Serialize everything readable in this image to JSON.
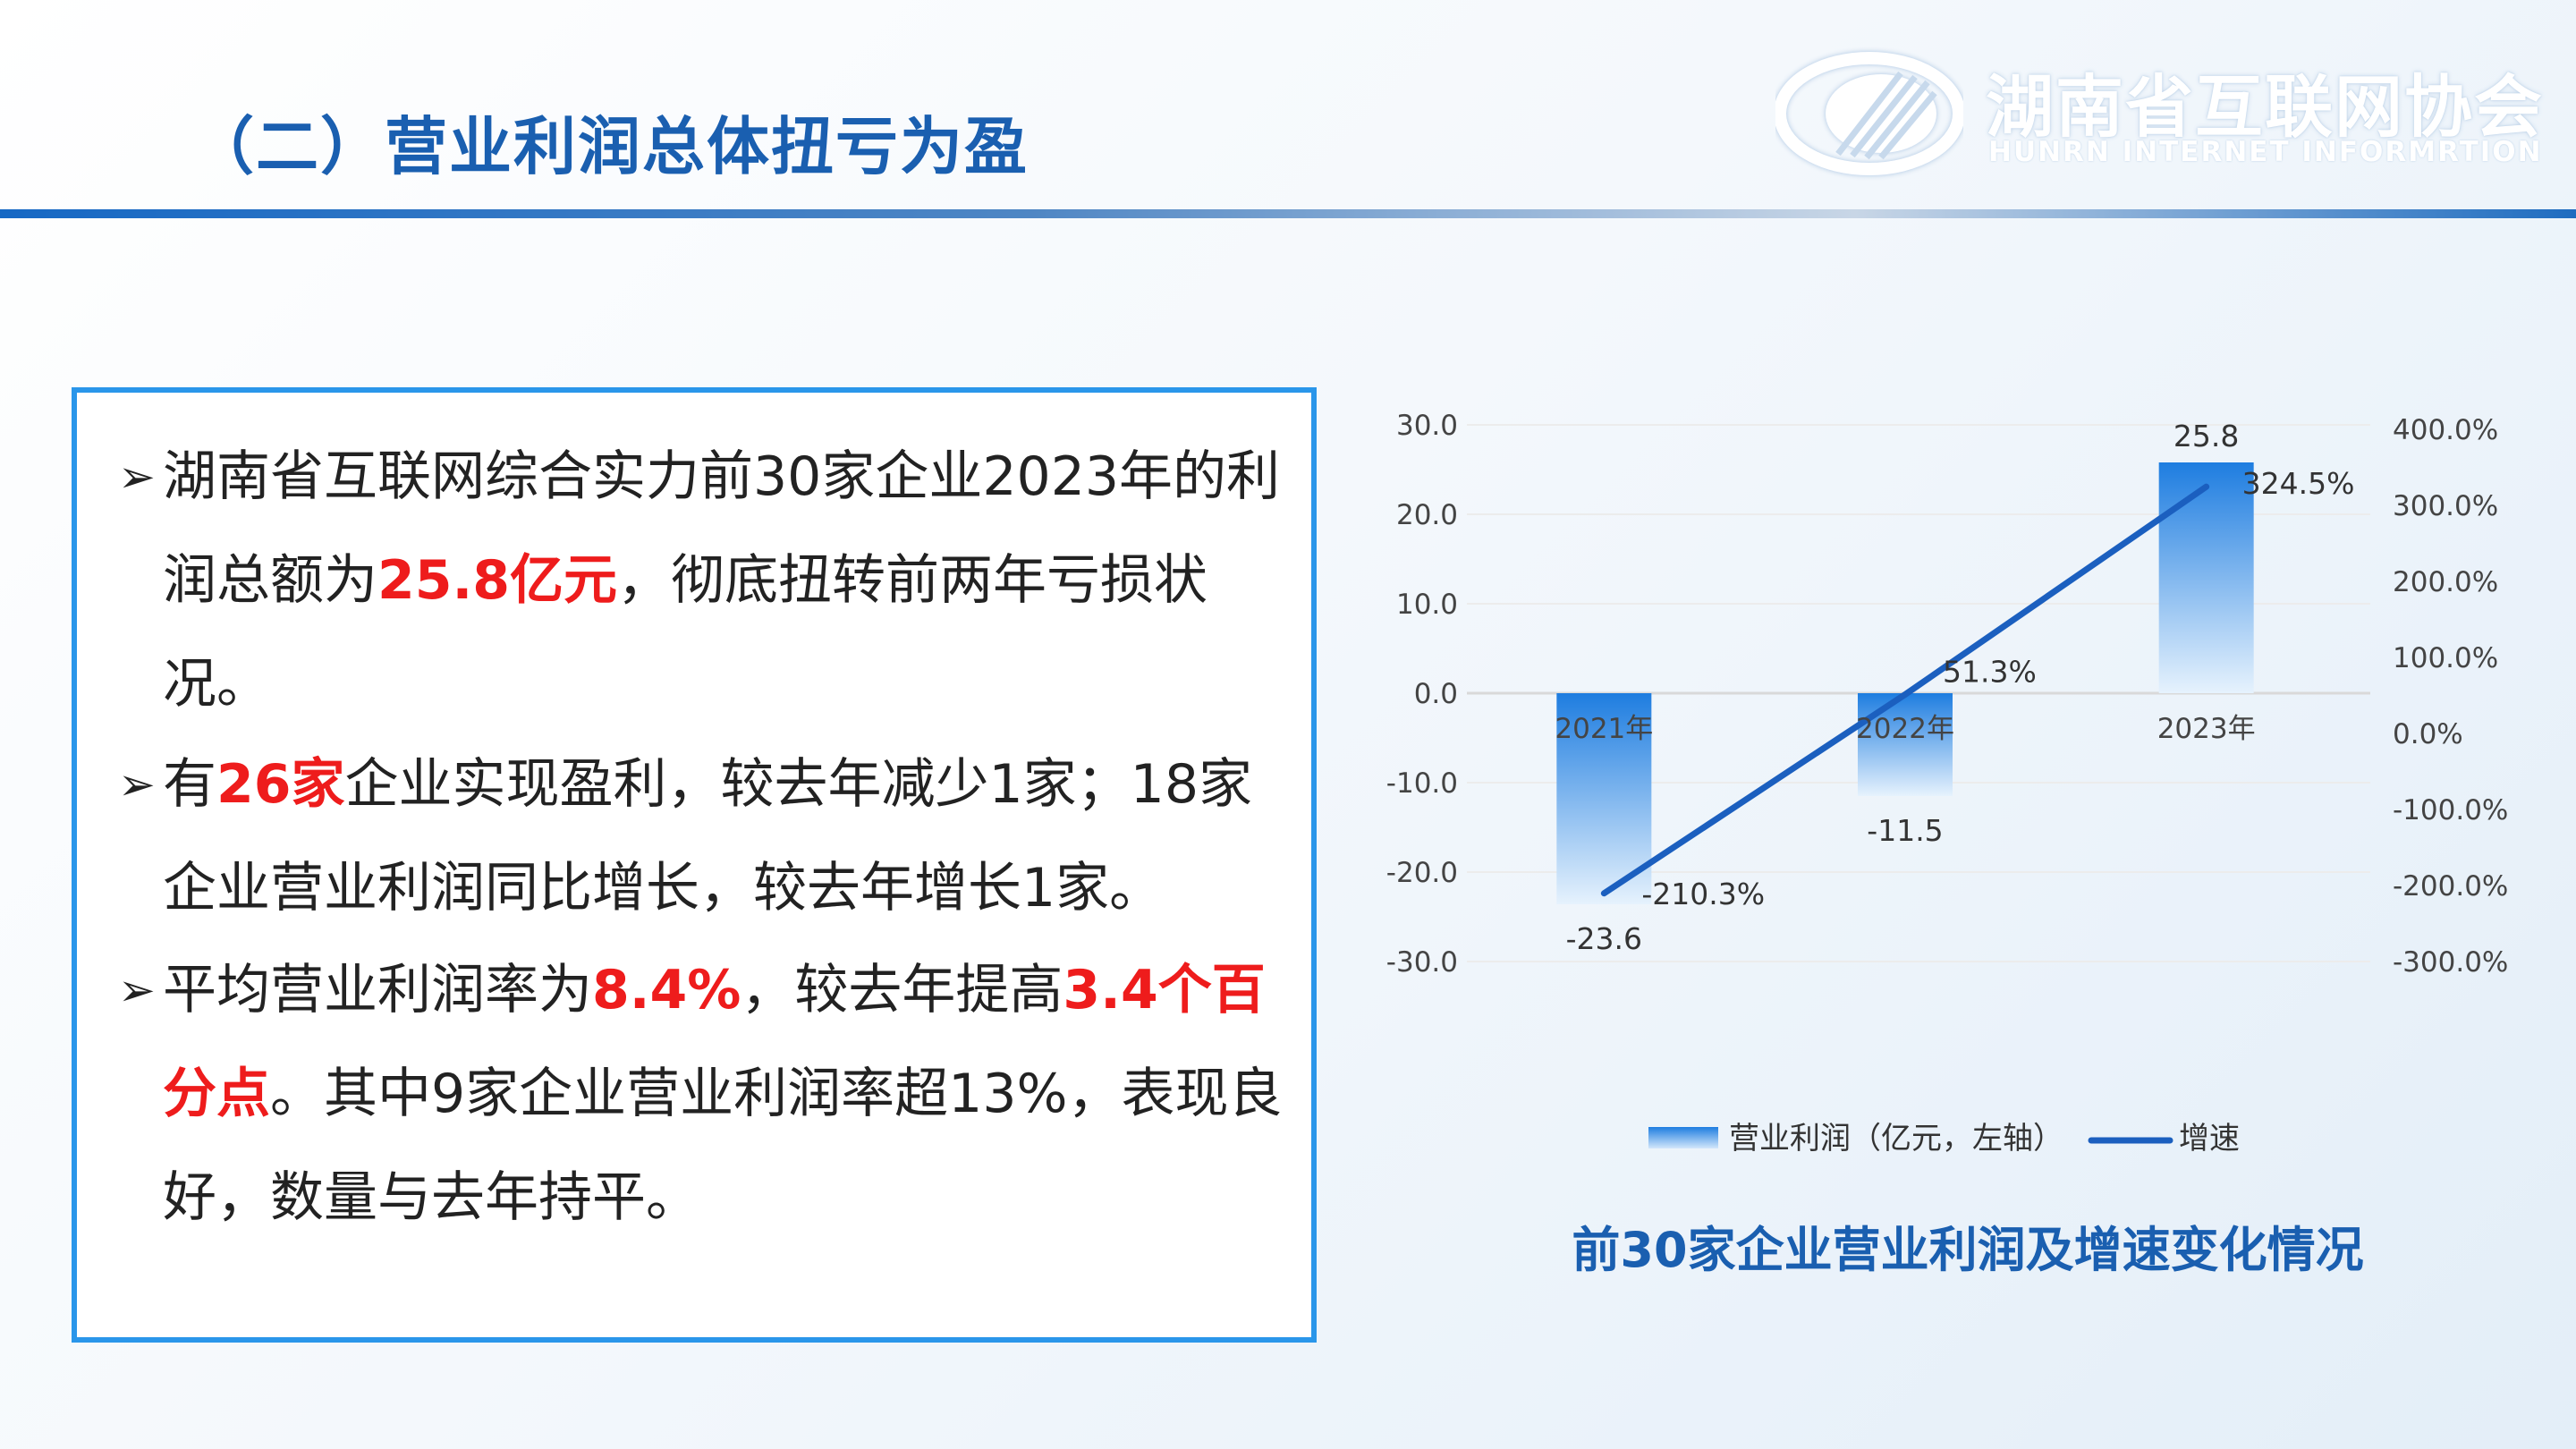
{
  "header": {
    "title": "（二）营业利润总体扭亏为盈"
  },
  "logo": {
    "name_cn": "湖南省互联网协会",
    "name_en": "HUNRN INTERNET INFORMRTION"
  },
  "bullets": [
    {
      "marker": "➢",
      "p1": "湖南省互联网综合实力前30家企业2023年的利润总额为",
      "h1": "25.8亿元",
      "p2": "，彻底扭转前两年亏损状况。",
      "h2": "",
      "p3": ""
    },
    {
      "marker": "➢",
      "p1": "有",
      "h1": "26家",
      "p2": "企业实现盈利，较去年减少1家；18家企业营业利润同比增长，较去年增长1家。",
      "h2": "",
      "p3": ""
    },
    {
      "marker": "➢",
      "p1": "平均营业利润率为",
      "h1": "8.4%",
      "p2": "，较去年提高",
      "h2": "3.4个百分点",
      "p3": "。其中9家企业营业利润率超13%，表现良好，数量与去年持平。"
    }
  ],
  "chart_data": {
    "type": "bar+line",
    "title": "前30家企业营业利润及增速变化情况",
    "categories": [
      "2021年",
      "2022年",
      "2023年"
    ],
    "series": [
      {
        "name": "营业利润（亿元，左轴）",
        "type": "bar",
        "axis": "left",
        "values": [
          -23.6,
          -11.5,
          25.8
        ],
        "labels": [
          "-23.6",
          "-11.5",
          "25.8"
        ]
      },
      {
        "name": "增速",
        "type": "line",
        "axis": "right",
        "values": [
          -210.3,
          51.3,
          324.5
        ],
        "labels": [
          "-210.3%",
          "51.3%",
          "324.5%"
        ]
      }
    ],
    "left_axis": {
      "ylim": [
        -30,
        30
      ],
      "ticks": [
        "30.0",
        "20.0",
        "10.0",
        "0.0",
        "-10.0",
        "-20.0",
        "-30.0"
      ],
      "tick_values": [
        30,
        20,
        10,
        0,
        -10,
        -20,
        -30
      ]
    },
    "right_axis": {
      "ylim": [
        -300,
        400
      ],
      "ticks": [
        "400.0%",
        "300.0%",
        "200.0%",
        "100.0%",
        "0.0%",
        "-100.0%",
        "-200.0%",
        "-300.0%"
      ],
      "tick_values": [
        400,
        300,
        200,
        100,
        0,
        -100,
        -200,
        -300
      ]
    },
    "grid": true,
    "legend": "bottom",
    "colors": {
      "bar": "#1e7de0",
      "line": "#1b5fbf"
    }
  }
}
